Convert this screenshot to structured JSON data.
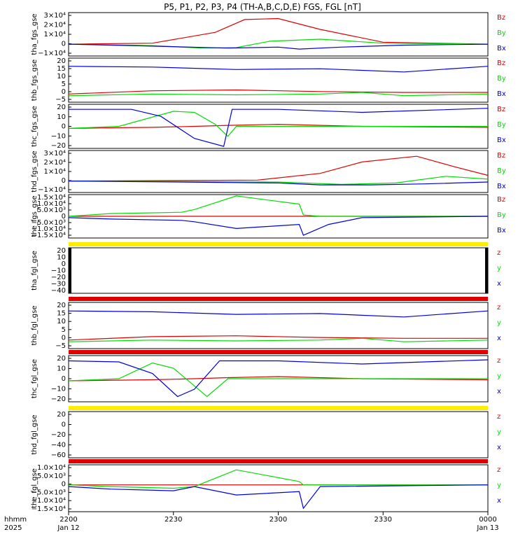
{
  "title": "P5, P1, P2, P3, P4 (TH-A,B,C,D,E) FGS, FGL [nT]",
  "time_axis": {
    "row_label_1": "hhmm",
    "row_label_2": "2025",
    "ticks": [
      {
        "label": "2200",
        "sub": "Jan 12"
      },
      {
        "label": "2230",
        "sub": ""
      },
      {
        "label": "2300",
        "sub": ""
      },
      {
        "label": "2330",
        "sub": ""
      },
      {
        "label": "0000",
        "sub": "Jan 13"
      }
    ]
  },
  "colors": {
    "red": "#e00000",
    "green": "#00dd00",
    "blue": "#0000dd",
    "yellow": "#ffee00",
    "black": "#000000"
  },
  "chart_data": [
    {
      "type": "line",
      "ylabel": "tha_fgs_gse",
      "ticks": [
        "3×10⁴",
        "2×10⁴",
        "1×10⁴",
        "0",
        "−1×10⁴"
      ],
      "ylim": [
        -12000,
        32000
      ],
      "legend": [
        "Bz",
        "By",
        "Bx"
      ],
      "series": [
        {
          "name": "Bz",
          "color": "#e00000",
          "x": [
            0,
            0.2,
            0.35,
            0.42,
            0.5,
            0.6,
            0.75,
            1.0
          ],
          "values": [
            0,
            1000,
            12000,
            25000,
            26000,
            15000,
            2000,
            0
          ]
        },
        {
          "name": "By",
          "color": "#00dd00",
          "x": [
            0,
            0.2,
            0.32,
            0.4,
            0.48,
            0.6,
            0.75,
            1.0
          ],
          "values": [
            0,
            -1500,
            -4000,
            -3500,
            3000,
            5000,
            1000,
            0
          ]
        },
        {
          "name": "Bx",
          "color": "#0000dd",
          "x": [
            0,
            0.2,
            0.38,
            0.5,
            0.55,
            0.65,
            0.8,
            1.0
          ],
          "values": [
            0,
            -2000,
            -4000,
            -3000,
            -5000,
            -3000,
            -1000,
            0
          ]
        }
      ]
    },
    {
      "type": "line",
      "ylabel": "thb_fgs_gse",
      "ticks": [
        "20",
        "15",
        "10",
        "5",
        "0",
        "−5"
      ],
      "ylim": [
        -6,
        21
      ],
      "legend": [
        "Bz",
        "By",
        "Bx"
      ],
      "series": [
        {
          "name": "Bz",
          "color": "#e00000",
          "x": [
            0,
            0.2,
            0.4,
            0.6,
            0.8,
            1.0
          ],
          "values": [
            -1,
            1,
            1.5,
            0.5,
            0,
            0
          ]
        },
        {
          "name": "By",
          "color": "#00dd00",
          "x": [
            0,
            0.2,
            0.4,
            0.6,
            0.7,
            0.8,
            1.0
          ],
          "values": [
            -2,
            -1,
            -1.5,
            -1,
            0,
            -2,
            -1
          ]
        },
        {
          "name": "Bx",
          "color": "#0000dd",
          "x": [
            0,
            0.2,
            0.4,
            0.6,
            0.8,
            1.0
          ],
          "values": [
            16,
            15.5,
            14,
            14.5,
            12.5,
            16
          ]
        }
      ]
    },
    {
      "type": "line",
      "ylabel": "thc_fgs_gse",
      "ticks": [
        "20",
        "10",
        "0",
        "−10",
        "−20"
      ],
      "ylim": [
        -22,
        22
      ],
      "legend": [
        "Bz",
        "By",
        "Bx"
      ],
      "series": [
        {
          "name": "Bz",
          "color": "#e00000",
          "x": [
            0,
            0.2,
            0.3,
            0.38,
            0.5,
            0.7,
            1.0
          ],
          "values": [
            -2,
            -1,
            0,
            1,
            2,
            0,
            -1
          ]
        },
        {
          "name": "By",
          "color": "#00dd00",
          "x": [
            0,
            0.12,
            0.25,
            0.3,
            0.35,
            0.38,
            0.4,
            0.5,
            1.0
          ],
          "values": [
            -2,
            0,
            15,
            14,
            2,
            -10,
            0,
            0,
            0
          ]
        },
        {
          "name": "Bx",
          "color": "#0000dd",
          "x": [
            0,
            0.15,
            0.22,
            0.3,
            0.37,
            0.39,
            0.5,
            0.7,
            1.0
          ],
          "values": [
            17,
            17,
            10,
            -12,
            -20,
            17,
            17,
            14,
            18
          ]
        }
      ]
    },
    {
      "type": "line",
      "ylabel": "thd_fgs_gse",
      "ticks": [
        "3×10⁴",
        "2×10⁴",
        "1×10⁴",
        "0",
        "−1×10⁴"
      ],
      "ylim": [
        -12000,
        32000
      ],
      "legend": [
        "Bz",
        "By",
        "Bx"
      ],
      "series": [
        {
          "name": "Bz",
          "color": "#e00000",
          "x": [
            0,
            0.45,
            0.6,
            0.7,
            0.83,
            0.92,
            1.0
          ],
          "values": [
            0,
            1000,
            8000,
            20000,
            26000,
            15000,
            6000
          ]
        },
        {
          "name": "By",
          "color": "#00dd00",
          "x": [
            0,
            0.5,
            0.65,
            0.78,
            0.9,
            1.0
          ],
          "values": [
            0,
            -1000,
            -3500,
            -2000,
            5000,
            2000
          ]
        },
        {
          "name": "Bx",
          "color": "#0000dd",
          "x": [
            0,
            0.5,
            0.6,
            0.72,
            0.85,
            1.0
          ],
          "values": [
            0,
            -2000,
            -4000,
            -4000,
            -3000,
            -1000
          ]
        }
      ]
    },
    {
      "type": "line",
      "ylabel": "the_fgs_gse",
      "ticks": [
        "1.5×10⁴",
        "1.0×10⁴",
        "5.0×10³",
        "0",
        "−5.0×10³",
        "−1.0×10⁴",
        "−1.5×10⁴"
      ],
      "ylim": [
        -16000,
        16000
      ],
      "legend": [
        "Bz",
        "By",
        "Bx"
      ],
      "series": [
        {
          "name": "Bz",
          "color": "#e00000",
          "x": [
            0,
            1.0
          ],
          "values": [
            0,
            0
          ]
        },
        {
          "name": "By",
          "color": "#00dd00",
          "x": [
            0,
            0.1,
            0.27,
            0.3,
            0.4,
            0.55,
            0.56,
            0.6,
            1.0
          ],
          "values": [
            0,
            2000,
            3000,
            5000,
            15000,
            9000,
            1000,
            0,
            0
          ]
        },
        {
          "name": "Bx",
          "color": "#0000dd",
          "x": [
            0,
            0.1,
            0.27,
            0.3,
            0.4,
            0.55,
            0.56,
            0.62,
            0.7,
            1.0
          ],
          "values": [
            -1000,
            -2000,
            -3000,
            -4000,
            -9000,
            -6000,
            -14000,
            -6000,
            -1000,
            0
          ]
        }
      ]
    },
    {
      "type": "line",
      "ylabel": "tha_fgl_gse",
      "ticks": [
        "20",
        "10",
        "0",
        "−10",
        "−20",
        "−30",
        "−40"
      ],
      "ylim": [
        -42,
        22
      ],
      "legend": [
        "z",
        "y",
        "x"
      ],
      "series": []
    },
    {
      "type": "line",
      "ylabel": "thb_fgl_gse",
      "ticks": [
        "20",
        "15",
        "10",
        "5",
        "0",
        "−5"
      ],
      "ylim": [
        -6,
        21
      ],
      "legend": [
        "z",
        "y",
        "x"
      ],
      "series": [
        {
          "name": "z",
          "color": "#e00000",
          "x": [
            0,
            0.2,
            0.4,
            0.6,
            0.8,
            1.0
          ],
          "values": [
            -1,
            1,
            1.5,
            0.5,
            0,
            0
          ]
        },
        {
          "name": "y",
          "color": "#00dd00",
          "x": [
            0,
            0.2,
            0.4,
            0.6,
            0.7,
            0.8,
            1.0
          ],
          "values": [
            -2,
            -1,
            -1.5,
            -1,
            0,
            -2,
            -1
          ]
        },
        {
          "name": "x",
          "color": "#0000dd",
          "x": [
            0,
            0.2,
            0.4,
            0.6,
            0.8,
            1.0
          ],
          "values": [
            16,
            15.5,
            14,
            14.5,
            12.5,
            16
          ]
        }
      ]
    },
    {
      "type": "line",
      "ylabel": "thc_fgl_gse",
      "ticks": [
        "20",
        "10",
        "0",
        "−10",
        "−20"
      ],
      "ylim": [
        -22,
        22
      ],
      "legend": [
        "z",
        "y",
        "x"
      ],
      "series": [
        {
          "name": "z",
          "color": "#e00000",
          "x": [
            0,
            0.2,
            0.3,
            0.38,
            0.5,
            0.7,
            1.0
          ],
          "values": [
            -2,
            -1,
            0,
            1,
            2,
            0,
            -1
          ]
        },
        {
          "name": "y",
          "color": "#00dd00",
          "x": [
            0,
            0.12,
            0.2,
            0.25,
            0.33,
            0.38,
            0.5,
            1.0
          ],
          "values": [
            -2,
            0,
            15,
            10,
            -17,
            0,
            0,
            0
          ]
        },
        {
          "name": "x",
          "color": "#0000dd",
          "x": [
            0,
            0.12,
            0.2,
            0.26,
            0.3,
            0.36,
            0.5,
            0.7,
            1.0
          ],
          "values": [
            17,
            16,
            5,
            -17,
            -10,
            17,
            17,
            14,
            18
          ]
        }
      ]
    },
    {
      "type": "line",
      "ylabel": "thd_fgl_gse",
      "ticks": [
        "20",
        "0",
        "−20",
        "−40",
        "−60"
      ],
      "ylim": [
        -68,
        30
      ],
      "legend": [
        "z",
        "y",
        "x"
      ],
      "series": []
    },
    {
      "type": "line",
      "ylabel": "the_fgl_gse",
      "ticks": [
        "1.0×10⁴",
        "5.0×10³",
        "0",
        "−5.0×10³",
        "−1.0×10⁴",
        "−1.5×10⁴"
      ],
      "ylim": [
        -16000,
        12000
      ],
      "legend": [
        "z",
        "y",
        "x"
      ],
      "series": [
        {
          "name": "z",
          "color": "#e00000",
          "x": [
            0,
            1.0
          ],
          "values": [
            0,
            0
          ]
        },
        {
          "name": "y",
          "color": "#00dd00",
          "x": [
            0,
            0.1,
            0.25,
            0.3,
            0.4,
            0.55,
            0.56,
            0.6,
            1.0
          ],
          "values": [
            0,
            -1000,
            -2000,
            -1000,
            9000,
            2000,
            0,
            0,
            0
          ]
        },
        {
          "name": "x",
          "color": "#0000dd",
          "x": [
            0,
            0.1,
            0.25,
            0.3,
            0.4,
            0.55,
            0.56,
            0.6,
            1.0
          ],
          "values": [
            -1000,
            -2500,
            -3500,
            -1000,
            -6000,
            -4000,
            -14000,
            -1000,
            0
          ]
        }
      ]
    }
  ],
  "bars": [
    {
      "panel": 5,
      "colors": [
        "#ffee00"
      ]
    },
    {
      "panel": 6,
      "colors": [
        "#e00000"
      ]
    },
    {
      "panel": 7,
      "colors": [
        "#e00000"
      ]
    },
    {
      "panel": 8,
      "colors": [
        "#ffee00"
      ]
    },
    {
      "panel": 9,
      "colors": [
        "#e00000"
      ]
    }
  ]
}
